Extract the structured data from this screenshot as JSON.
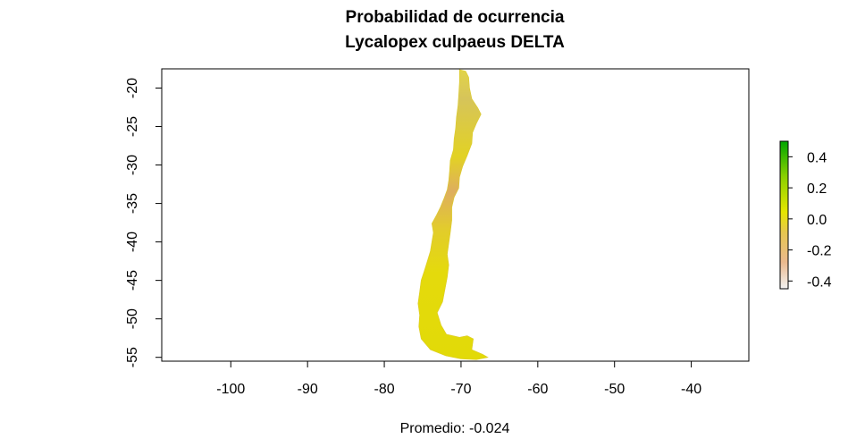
{
  "title": "Probabilidad de ocurrencia",
  "subtitle": "Lycalopex culpaeus DELTA",
  "caption": "Promedio: -0.024",
  "chart_data": {
    "type": "heatmap",
    "xlim": [
      -109,
      -32.5
    ],
    "ylim": [
      -55.5,
      -17.5
    ],
    "x_ticks": [
      -100,
      -90,
      -80,
      -70,
      -60,
      -50,
      -40
    ],
    "y_ticks": [
      -20,
      -25,
      -30,
      -35,
      -40,
      -45,
      -50,
      -55
    ],
    "legend": {
      "placement": "right",
      "range": [
        -0.45,
        0.5
      ],
      "ticks": [
        0.4,
        0.2,
        0.0,
        -0.2,
        -0.4
      ],
      "tick_labels": [
        "0.4",
        "0.2",
        "0.0",
        "-0.2",
        "-0.4"
      ],
      "colors": [
        "#F2F2F2",
        "#EBB98E",
        "#E6C650",
        "#E6E600",
        "#8BD000",
        "#00A600"
      ]
    },
    "region_outline": [
      [
        -70.2,
        -17.6
      ],
      [
        -69.4,
        -17.8
      ],
      [
        -69.0,
        -18.6
      ],
      [
        -68.9,
        -20.0
      ],
      [
        -68.6,
        -21.4
      ],
      [
        -67.8,
        -22.6
      ],
      [
        -67.4,
        -23.4
      ],
      [
        -68.0,
        -24.6
      ],
      [
        -68.5,
        -25.8
      ],
      [
        -68.6,
        -27.2
      ],
      [
        -69.2,
        -28.8
      ],
      [
        -69.8,
        -30.2
      ],
      [
        -70.2,
        -31.6
      ],
      [
        -70.3,
        -33.0
      ],
      [
        -70.9,
        -34.2
      ],
      [
        -71.2,
        -35.5
      ],
      [
        -71.2,
        -37.2
      ],
      [
        -71.4,
        -38.8
      ],
      [
        -71.6,
        -40.2
      ],
      [
        -71.8,
        -41.6
      ],
      [
        -71.6,
        -43.0
      ],
      [
        -71.8,
        -44.6
      ],
      [
        -72.1,
        -46.2
      ],
      [
        -72.4,
        -47.8
      ],
      [
        -73.1,
        -49.2
      ],
      [
        -72.6,
        -50.8
      ],
      [
        -71.9,
        -52.0
      ],
      [
        -70.2,
        -52.4
      ],
      [
        -69.2,
        -52.2
      ],
      [
        -68.4,
        -52.6
      ],
      [
        -68.6,
        -54.0
      ],
      [
        -67.2,
        -54.6
      ],
      [
        -66.5,
        -55.0
      ],
      [
        -68.0,
        -55.3
      ],
      [
        -70.0,
        -55.2
      ],
      [
        -72.0,
        -54.8
      ],
      [
        -74.0,
        -54.0
      ],
      [
        -75.2,
        -52.6
      ],
      [
        -75.5,
        -51.0
      ],
      [
        -75.4,
        -49.5
      ],
      [
        -75.6,
        -48.0
      ],
      [
        -75.4,
        -46.5
      ],
      [
        -75.2,
        -45.0
      ],
      [
        -74.8,
        -43.8
      ],
      [
        -74.4,
        -42.5
      ],
      [
        -74.0,
        -41.2
      ],
      [
        -73.8,
        -40.0
      ],
      [
        -73.6,
        -38.8
      ],
      [
        -73.8,
        -37.6
      ],
      [
        -73.2,
        -36.5
      ],
      [
        -72.7,
        -35.5
      ],
      [
        -72.2,
        -34.3
      ],
      [
        -71.8,
        -33.2
      ],
      [
        -71.6,
        -32.0
      ],
      [
        -71.5,
        -30.8
      ],
      [
        -71.4,
        -29.4
      ],
      [
        -71.0,
        -28.0
      ],
      [
        -70.9,
        -26.6
      ],
      [
        -70.7,
        -25.2
      ],
      [
        -70.6,
        -23.8
      ],
      [
        -70.4,
        -22.3
      ],
      [
        -70.3,
        -20.8
      ],
      [
        -70.2,
        -19.2
      ]
    ]
  }
}
